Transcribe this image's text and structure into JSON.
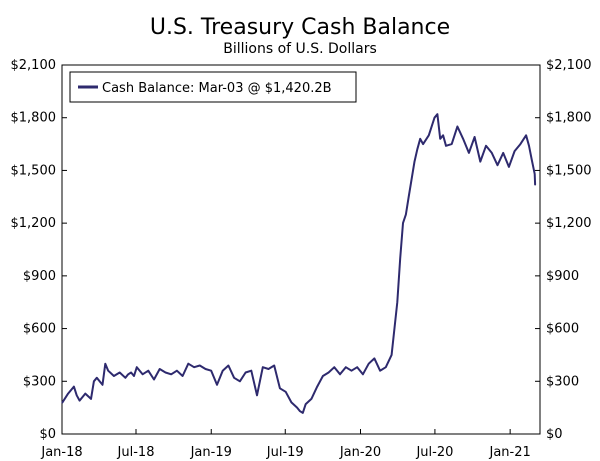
{
  "chart_data": {
    "type": "line",
    "title": "U.S. Treasury Cash Balance",
    "subtitle": "Billions of U.S. Dollars",
    "xlabel": "",
    "ylabel": "",
    "ylim": [
      0,
      2100
    ],
    "yticks": [
      0,
      300,
      600,
      900,
      1200,
      1500,
      1800,
      2100
    ],
    "ytick_labels": [
      "$0",
      "$300",
      "$600",
      "$900",
      "$1,200",
      "$1,500",
      "$1,800",
      "$2,100"
    ],
    "xlim": [
      "2018-01-01",
      "2021-03-15"
    ],
    "xticks": [
      "2018-01-01",
      "2018-07-01",
      "2019-01-01",
      "2019-07-01",
      "2020-01-01",
      "2020-07-01",
      "2021-01-01"
    ],
    "xtick_labels": [
      "Jan-18",
      "Jul-18",
      "Jan-19",
      "Jul-19",
      "Jan-20",
      "Jul-20",
      "Jan-21"
    ],
    "grid": false,
    "legend_position": "top-left",
    "legend": [
      "Cash Balance: Mar-03 @ $1,420.2B"
    ],
    "colors": {
      "line": "#2e2a6e",
      "axis": "#000000",
      "background": "#ffffff"
    },
    "series": [
      {
        "name": "Cash Balance: Mar-03 @ $1,420.2B",
        "x": [
          "2018-01-02",
          "2018-01-16",
          "2018-01-30",
          "2018-02-06",
          "2018-02-13",
          "2018-02-27",
          "2018-03-13",
          "2018-03-20",
          "2018-03-27",
          "2018-04-10",
          "2018-04-17",
          "2018-04-24",
          "2018-05-08",
          "2018-05-22",
          "2018-06-05",
          "2018-06-12",
          "2018-06-19",
          "2018-06-26",
          "2018-07-03",
          "2018-07-17",
          "2018-07-31",
          "2018-08-14",
          "2018-08-28",
          "2018-09-11",
          "2018-09-25",
          "2018-10-09",
          "2018-10-23",
          "2018-11-06",
          "2018-11-20",
          "2018-12-04",
          "2018-12-18",
          "2019-01-01",
          "2019-01-15",
          "2019-01-29",
          "2019-02-12",
          "2019-02-26",
          "2019-03-12",
          "2019-03-26",
          "2019-04-09",
          "2019-04-23",
          "2019-05-07",
          "2019-05-21",
          "2019-06-04",
          "2019-06-18",
          "2019-07-02",
          "2019-07-16",
          "2019-07-30",
          "2019-08-06",
          "2019-08-13",
          "2019-08-20",
          "2019-09-03",
          "2019-09-17",
          "2019-10-01",
          "2019-10-15",
          "2019-10-29",
          "2019-11-12",
          "2019-11-26",
          "2019-12-10",
          "2019-12-24",
          "2020-01-07",
          "2020-01-21",
          "2020-02-04",
          "2020-02-18",
          "2020-03-03",
          "2020-03-17",
          "2020-03-31",
          "2020-04-07",
          "2020-04-14",
          "2020-04-21",
          "2020-04-28",
          "2020-05-05",
          "2020-05-12",
          "2020-05-19",
          "2020-05-26",
          "2020-06-02",
          "2020-06-16",
          "2020-06-30",
          "2020-07-07",
          "2020-07-14",
          "2020-07-21",
          "2020-07-28",
          "2020-08-11",
          "2020-08-25",
          "2020-09-08",
          "2020-09-22",
          "2020-10-06",
          "2020-10-20",
          "2020-11-03",
          "2020-11-17",
          "2020-12-01",
          "2020-12-15",
          "2020-12-29",
          "2021-01-12",
          "2021-01-26",
          "2021-02-09",
          "2021-02-16",
          "2021-02-23",
          "2021-03-02",
          "2021-03-03"
        ],
        "values": [
          180,
          230,
          270,
          220,
          190,
          230,
          200,
          300,
          320,
          280,
          400,
          360,
          330,
          350,
          320,
          340,
          350,
          330,
          380,
          340,
          360,
          310,
          370,
          350,
          340,
          360,
          330,
          400,
          380,
          390,
          370,
          360,
          280,
          360,
          390,
          320,
          300,
          350,
          360,
          220,
          380,
          370,
          390,
          260,
          240,
          180,
          150,
          130,
          120,
          170,
          200,
          270,
          330,
          350,
          380,
          340,
          380,
          360,
          380,
          340,
          400,
          430,
          360,
          380,
          450,
          750,
          1000,
          1200,
          1250,
          1350,
          1450,
          1550,
          1620,
          1680,
          1650,
          1700,
          1800,
          1820,
          1680,
          1700,
          1640,
          1650,
          1750,
          1680,
          1600,
          1690,
          1550,
          1640,
          1600,
          1530,
          1600,
          1520,
          1610,
          1650,
          1700,
          1640,
          1560,
          1480,
          1420.2
        ]
      }
    ]
  }
}
